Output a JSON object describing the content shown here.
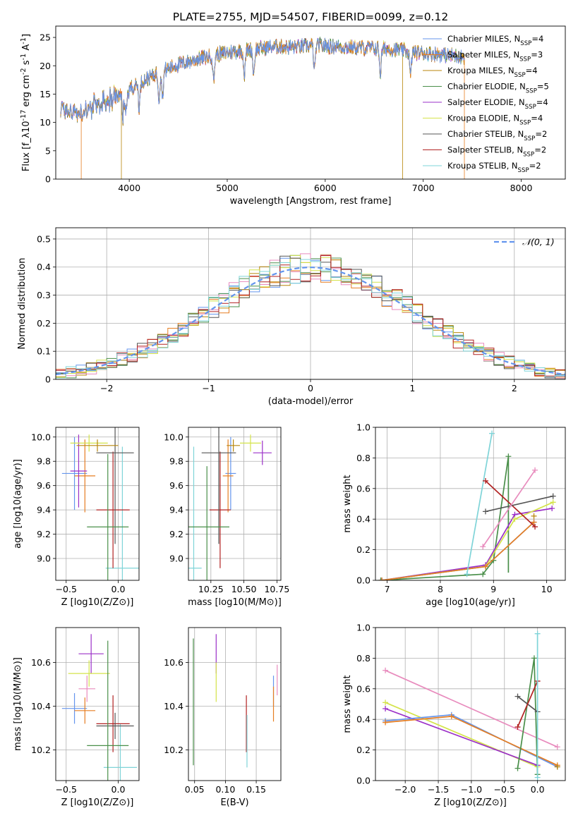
{
  "title": "PLATE=2755, MJD=54507, FIBERID=0099, z=0.12",
  "colors": [
    "#6495ed",
    "#e67e22",
    "#b8860b",
    "#4a8f4a",
    "#9b30c8",
    "#d4e34a",
    "#555555",
    "#b22222",
    "#7fd4d8"
  ],
  "series_names": [
    "Chabrier MILES, N_{SSP}=4",
    "Salpeter MILES, N_{SSP}=3",
    "Kroupa MILES, N_{SSP}=4",
    "Chabrier ELODIE, N_{SSP}=5",
    "Salpeter ELODIE, N_{SSP}=4",
    "Kroupa ELODIE, N_{SSP}=4",
    "Chabrier STELIB, N_{SSP}=2",
    "Salpeter STELIB, N_{SSP}=2",
    "Kroupa STELIB, N_{SSP}=2"
  ],
  "chart_data": [
    {
      "id": "spectrum",
      "type": "line",
      "xlabel": "wavelength [Angstrom, rest frame]",
      "ylabel": "Flux [f_λ10^{-17} erg cm^{-2} s^{-1} A^{-1}]",
      "xlim": [
        3250,
        8450
      ],
      "ylim": [
        0,
        27
      ],
      "xticks": [
        4000,
        5000,
        6000,
        7000,
        8000
      ],
      "yticks": [
        0,
        5,
        10,
        15,
        20,
        25
      ],
      "grid": false,
      "legend": "right",
      "continuum": {
        "x": [
          3300,
          3500,
          3700,
          3900,
          4100,
          4300,
          4500,
          4700,
          4900,
          5100,
          5300,
          5500,
          5700,
          5900,
          6100,
          6300,
          6500,
          6700,
          6900,
          7100,
          7300,
          7420
        ],
        "y": [
          12.5,
          11.5,
          13.2,
          14.8,
          17.0,
          18.8,
          20.2,
          21.2,
          22.0,
          22.6,
          23.0,
          23.4,
          23.3,
          23.6,
          23.4,
          23.2,
          23.1,
          22.9,
          22.4,
          22.1,
          21.8,
          21.6
        ]
      },
      "absorption_lines": [
        3934,
        3969,
        4102,
        4304,
        4340,
        4861,
        5175,
        5270,
        5890,
        6563,
        6870
      ],
      "dropouts": [
        {
          "series": 1,
          "x": 3510
        },
        {
          "series": 2,
          "x": 3920
        },
        {
          "series": 2,
          "x": 6790
        },
        {
          "series": 1,
          "x": 7420
        }
      ]
    },
    {
      "id": "residuals",
      "type": "histogram",
      "xlabel": "(data-model)/error",
      "ylabel": "Normed distribution",
      "xlim": [
        -2.5,
        2.5
      ],
      "ylim": [
        0,
        0.54
      ],
      "xticks": [
        -2,
        -1,
        0,
        1,
        2
      ],
      "yticks": [
        0,
        0.1,
        0.2,
        0.3,
        0.4,
        0.5
      ],
      "grid": true,
      "legend": "top-right",
      "bins": 50,
      "reference": {
        "name": "𝒩(0, 1)",
        "mean": 0,
        "sigma": 1
      },
      "noise_amplitude": 0.045
    },
    {
      "id": "age_vs_Z",
      "type": "errorbar",
      "xlabel": "Z [log10(Z/Z⊙)]",
      "ylabel": "age  [log10(age/yr)]",
      "xlim": [
        -0.6,
        0.2
      ],
      "ylim": [
        8.82,
        10.08
      ],
      "xticks": [
        -0.5,
        0.0
      ],
      "yticks": [
        9.0,
        9.2,
        9.4,
        9.6,
        9.8,
        10.0
      ],
      "grid": true,
      "points": [
        {
          "s": 0,
          "x": -0.42,
          "xe": 0.12,
          "y": 9.7,
          "ye": 0.3
        },
        {
          "s": 1,
          "x": -0.32,
          "xe": 0.1,
          "y": 9.68,
          "ye": 0.3
        },
        {
          "s": 4,
          "x": -0.38,
          "xe": 0.08,
          "y": 9.72,
          "ye": 0.3
        },
        {
          "s": 5,
          "x": -0.28,
          "xe": 0.18,
          "y": 9.95,
          "ye": 0.07
        },
        {
          "s": 8,
          "x": 0.04,
          "xe": 0.16,
          "y": 8.92,
          "ye": 1.0
        },
        {
          "s": 7,
          "x": -0.05,
          "xe": 0.16,
          "y": 9.4,
          "ye": 0.48
        },
        {
          "s": 6,
          "x": -0.03,
          "xe": 0.18,
          "y": 9.87,
          "ye": 0.75
        },
        {
          "s": 3,
          "x": -0.1,
          "xe": 0.2,
          "y": 9.26,
          "ye": 0.6
        },
        {
          "s": 2,
          "x": -0.2,
          "xe": 0.2,
          "y": 9.93,
          "ye": 0.05
        }
      ]
    },
    {
      "id": "age_vs_mass",
      "type": "errorbar",
      "xlabel": "mass [log10(M/M⊙)]",
      "ylabel": "",
      "xlim": [
        10.08,
        10.78
      ],
      "ylim": [
        8.82,
        10.08
      ],
      "xticks": [
        10.25,
        10.5,
        10.75
      ],
      "yticks": [
        9.0,
        9.2,
        9.4,
        9.6,
        9.8,
        10.0
      ],
      "grid": true,
      "points": [
        {
          "s": 0,
          "x": 10.4,
          "xe": 0.04,
          "y": 9.7,
          "ye": 0.3
        },
        {
          "s": 1,
          "x": 10.38,
          "xe": 0.04,
          "y": 9.68,
          "ye": 0.3
        },
        {
          "s": 4,
          "x": 10.64,
          "xe": 0.07,
          "y": 9.87,
          "ye": 0.1
        },
        {
          "s": 5,
          "x": 10.55,
          "xe": 0.08,
          "y": 9.95,
          "ye": 0.07
        },
        {
          "s": 8,
          "x": 10.12,
          "xe": 0.06,
          "y": 8.92,
          "ye": 1.0
        },
        {
          "s": 7,
          "x": 10.32,
          "xe": 0.08,
          "y": 9.4,
          "ye": 0.48
        },
        {
          "s": 6,
          "x": 10.31,
          "xe": 0.13,
          "y": 9.87,
          "ye": 0.75
        },
        {
          "s": 3,
          "x": 10.22,
          "xe": 0.17,
          "y": 9.26,
          "ye": 0.5
        },
        {
          "s": 2,
          "x": 10.42,
          "xe": 0.05,
          "y": 9.93,
          "ye": 0.05
        }
      ]
    },
    {
      "id": "weight_vs_age",
      "type": "line",
      "xlabel": "age  [log10(age/yr)]",
      "ylabel": "mass weight",
      "xlim": [
        6.78,
        10.35
      ],
      "ylim": [
        0,
        1.0
      ],
      "xticks": [
        7,
        8,
        9,
        10
      ],
      "yticks": [
        0,
        0.2,
        0.4,
        0.6,
        0.8,
        1.0
      ],
      "grid": true,
      "series": [
        {
          "s": 3,
          "x": [
            6.88,
            8.8,
            9.0,
            9.28
          ],
          "y": [
            0.0,
            0.04,
            0.13,
            0.81
          ],
          "ye": [
            0,
            0,
            0,
            0.38
          ]
        },
        {
          "s": 4,
          "x": [
            6.9,
            8.85,
            9.4,
            10.1
          ],
          "y": [
            0.0,
            0.1,
            0.43,
            0.47
          ],
          "ye": [
            0,
            0,
            0,
            0
          ]
        },
        {
          "s": 5,
          "x": [
            6.9,
            8.85,
            9.4,
            10.12
          ],
          "y": [
            0.0,
            0.09,
            0.4,
            0.51
          ],
          "ye": [
            0,
            0,
            0,
            0
          ]
        },
        {
          "s": 0,
          "x": [
            6.9,
            8.85,
            9.76
          ],
          "y": [
            0.0,
            0.09,
            0.38
          ],
          "ye": [
            0,
            0,
            0
          ]
        },
        {
          "s": 1,
          "x": [
            6.9,
            8.85,
            9.76
          ],
          "y": [
            0.0,
            0.09,
            0.38
          ],
          "ye": [
            0,
            0,
            0
          ]
        },
        {
          "s": 2,
          "x": [
            9.76
          ],
          "y": [
            0.42
          ],
          "ye": [
            0
          ]
        },
        {
          "s": 8,
          "x": [
            8.5,
            8.97
          ],
          "y": [
            0.04,
            0.96
          ],
          "ye": [
            0,
            0
          ]
        },
        {
          "s": 7,
          "x": [
            8.85,
            9.78
          ],
          "y": [
            0.65,
            0.35
          ],
          "ye": [
            0,
            0
          ]
        },
        {
          "s": 6,
          "x": [
            8.85,
            10.12
          ],
          "y": [
            0.45,
            0.55
          ],
          "ye": [
            0,
            0
          ]
        },
        {
          "s": "pink",
          "x": [
            8.8,
            9.78
          ],
          "y": [
            0.22,
            0.72
          ],
          "ye": [
            0,
            0
          ]
        }
      ]
    },
    {
      "id": "mass_vs_Z",
      "type": "errorbar",
      "xlabel": "Z [log10(Z/Z⊙)]",
      "ylabel": "mass [log10(M/M⊙)]",
      "xlim": [
        -0.6,
        0.2
      ],
      "ylim": [
        10.06,
        10.76
      ],
      "xticks": [
        -0.5,
        0.0
      ],
      "yticks": [
        10.2,
        10.4,
        10.6
      ],
      "grid": true,
      "points": [
        {
          "s": 0,
          "x": -0.42,
          "xe": 0.12,
          "y": 10.39,
          "ye": 0.07
        },
        {
          "s": 1,
          "x": -0.32,
          "xe": 0.1,
          "y": 10.38,
          "ye": 0.06
        },
        {
          "s": 4,
          "x": -0.26,
          "xe": 0.12,
          "y": 10.64,
          "ye": 0.09
        },
        {
          "s": 5,
          "x": -0.28,
          "xe": 0.2,
          "y": 10.55,
          "ye": 0.06
        },
        {
          "s": "pink",
          "x": -0.3,
          "xe": 0.08,
          "y": 10.48,
          "ye": 0.06
        },
        {
          "s": 8,
          "x": 0.02,
          "xe": 0.16,
          "y": 10.12,
          "ye": 0.2
        },
        {
          "s": 7,
          "x": -0.05,
          "xe": 0.16,
          "y": 10.32,
          "ye": 0.13
        },
        {
          "s": 6,
          "x": -0.03,
          "xe": 0.18,
          "y": 10.31,
          "ye": 0.06
        },
        {
          "s": 3,
          "x": -0.1,
          "xe": 0.2,
          "y": 10.22,
          "ye": 0.48
        }
      ]
    },
    {
      "id": "mass_vs_ebv",
      "type": "errorbar",
      "xlabel": "E(B-V)",
      "ylabel": "",
      "xlim": [
        0.04,
        0.19
      ],
      "ylim": [
        10.06,
        10.76
      ],
      "xticks": [
        0.05,
        0.1,
        0.15
      ],
      "yticks": [
        10.2,
        10.4,
        10.6
      ],
      "grid": true,
      "points": [
        {
          "s": 3,
          "x": 0.048,
          "xe": 0,
          "y": 10.42,
          "ye": 0.29
        },
        {
          "s": 4,
          "x": 0.085,
          "xe": 0,
          "y": 10.64,
          "ye": 0.09
        },
        {
          "s": 5,
          "x": 0.085,
          "xe": 0,
          "y": 10.51,
          "ye": 0.09
        },
        {
          "s": 7,
          "x": 0.134,
          "xe": 0,
          "y": 10.32,
          "ye": 0.13
        },
        {
          "s": 8,
          "x": 0.135,
          "xe": 0,
          "y": 10.24,
          "ye": 0.12
        },
        {
          "s": 0,
          "x": 0.178,
          "xe": 0,
          "y": 10.47,
          "ye": 0.07
        },
        {
          "s": 1,
          "x": 0.178,
          "xe": 0,
          "y": 10.41,
          "ye": 0.08
        },
        {
          "s": "pink",
          "x": 0.184,
          "xe": 0,
          "y": 10.52,
          "ye": 0.07
        }
      ]
    },
    {
      "id": "weight_vs_Z",
      "type": "line",
      "xlabel": "Z [log10(Z/Z⊙)]",
      "ylabel": "mass weight",
      "xlim": [
        -2.45,
        0.42
      ],
      "ylim": [
        0,
        1.0
      ],
      "xticks": [
        -2.0,
        -1.5,
        -1.0,
        -0.5,
        0.0
      ],
      "yticks": [
        0,
        0.2,
        0.4,
        0.6,
        0.8,
        1.0
      ],
      "grid": true,
      "series": [
        {
          "s": "pink",
          "x": [
            -2.3,
            0.3
          ],
          "y": [
            0.72,
            0.22
          ]
        },
        {
          "s": 5,
          "x": [
            -2.3,
            0.0
          ],
          "y": [
            0.51,
            0.09
          ]
        },
        {
          "s": 4,
          "x": [
            -2.3,
            0.0
          ],
          "y": [
            0.47,
            0.1
          ]
        },
        {
          "s": 0,
          "x": [
            -2.3,
            -1.3,
            0.3
          ],
          "y": [
            0.39,
            0.43,
            0.09
          ]
        },
        {
          "s": 1,
          "x": [
            -2.3,
            -1.3,
            0.3
          ],
          "y": [
            0.38,
            0.42,
            0.1
          ]
        },
        {
          "s": 2,
          "x": [
            0.3
          ],
          "y": [
            0.09
          ]
        },
        {
          "s": 3,
          "x": [
            -0.3,
            -0.05,
            0.0
          ],
          "y": [
            0.08,
            0.8,
            0.04
          ]
        },
        {
          "s": 6,
          "x": [
            -0.3,
            0.0
          ],
          "y": [
            0.55,
            0.45
          ]
        },
        {
          "s": 7,
          "x": [
            -0.3,
            0.0
          ],
          "y": [
            0.35,
            0.65
          ]
        },
        {
          "s": 8,
          "x": [
            0.0,
            0.0
          ],
          "y": [
            0.02,
            0.96
          ]
        }
      ]
    }
  ]
}
